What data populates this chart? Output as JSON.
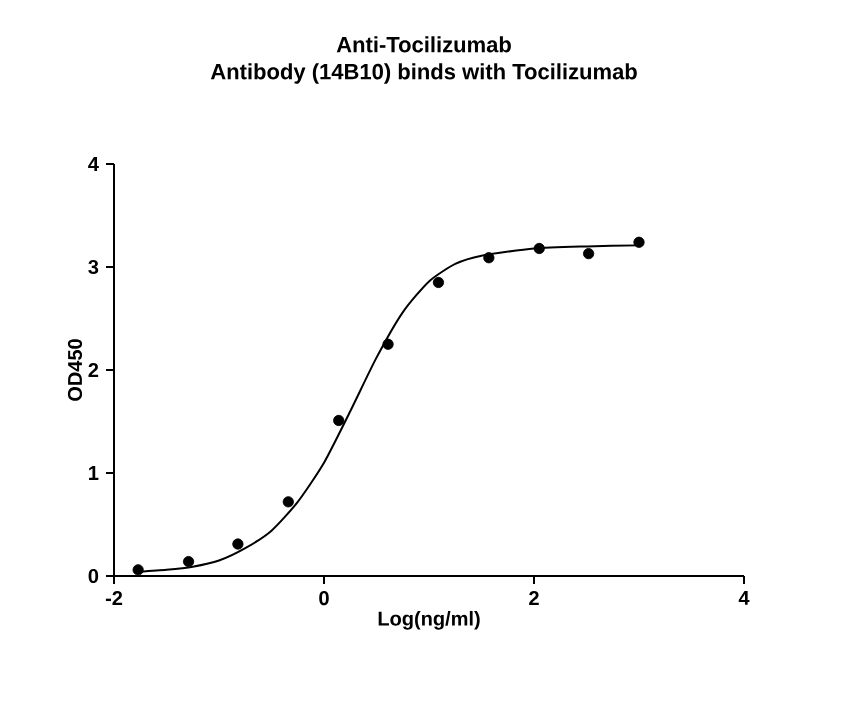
{
  "chart_data": {
    "type": "scatter",
    "title": "Anti-Tocilizumab\nAntibody (14B10) binds with Tocilizumab",
    "xlabel": "Log(ng/ml)",
    "ylabel": "OD450",
    "xlim": [
      -2,
      4
    ],
    "xticks": [
      -2,
      0,
      2,
      4
    ],
    "ylim": [
      0,
      4
    ],
    "yticks": [
      0,
      1,
      2,
      3,
      4
    ],
    "grid": false,
    "series": [
      {
        "marker": "circle",
        "color": "#000000",
        "x": [
          -1.77,
          -1.29,
          -0.82,
          -0.34,
          0.14,
          0.61,
          1.09,
          1.57,
          2.05,
          2.52,
          3.0
        ],
        "values": [
          0.06,
          0.14,
          0.31,
          0.72,
          1.51,
          2.25,
          2.85,
          3.09,
          3.18,
          3.13,
          3.24
        ]
      },
      {
        "type": "line",
        "color": "#000000",
        "x": [
          -1.77,
          -1.5,
          -1.25,
          -1.0,
          -0.75,
          -0.5,
          -0.25,
          0.0,
          0.25,
          0.5,
          0.75,
          1.0,
          1.25,
          1.5,
          2.0,
          2.5,
          3.0
        ],
        "values": [
          0.04,
          0.06,
          0.09,
          0.15,
          0.27,
          0.44,
          0.72,
          1.1,
          1.6,
          2.12,
          2.56,
          2.86,
          3.03,
          3.11,
          3.18,
          3.2,
          3.21
        ]
      }
    ]
  }
}
